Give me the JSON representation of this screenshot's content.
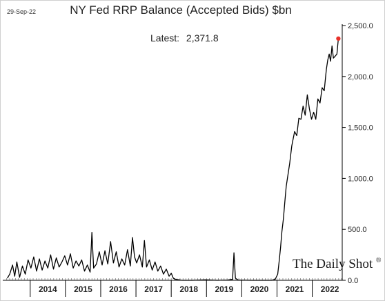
{
  "date_stamp": "29-Sep-22",
  "latest_label": "Latest:",
  "latest_value": "2,371.8",
  "watermark": "The Daily Shot",
  "watermark_mark": "®",
  "colors": {
    "line": "#000000",
    "latest_point": "#e8312a",
    "axis": "#000000",
    "text": "#222222"
  },
  "chart_data": {
    "type": "line",
    "title": "NY Fed RRP Balance (Accepted Bids) $bn",
    "xlabel": "",
    "ylabel": "",
    "y_axis_side": "right",
    "ylim": [
      0,
      2500
    ],
    "yticks": [
      0,
      500,
      1000,
      1500,
      2000,
      2500
    ],
    "ytick_labels": [
      "0.0",
      "500.0",
      "1,000.0",
      "1,500.0",
      "2,000.0",
      "2,500.0"
    ],
    "x_categories": [
      "2014",
      "2015",
      "2016",
      "2017",
      "2018",
      "2019",
      "2020",
      "2021",
      "2022"
    ],
    "xlim": [
      2013.3,
      2022.85
    ],
    "grid": false,
    "legend": "none",
    "latest": {
      "x": 2022.74,
      "y": 2371.8
    },
    "series": [
      {
        "values": [
          [
            2013.35,
            20
          ],
          [
            2013.42,
            60
          ],
          [
            2013.5,
            150
          ],
          [
            2013.56,
            40
          ],
          [
            2013.62,
            180
          ],
          [
            2013.7,
            30
          ],
          [
            2013.78,
            140
          ],
          [
            2013.86,
            60
          ],
          [
            2013.94,
            200
          ],
          [
            2014.02,
            120
          ],
          [
            2014.1,
            230
          ],
          [
            2014.18,
            90
          ],
          [
            2014.26,
            210
          ],
          [
            2014.34,
            100
          ],
          [
            2014.42,
            190
          ],
          [
            2014.5,
            120
          ],
          [
            2014.58,
            250
          ],
          [
            2014.66,
            110
          ],
          [
            2014.74,
            220
          ],
          [
            2014.82,
            130
          ],
          [
            2014.9,
            180
          ],
          [
            2014.98,
            240
          ],
          [
            2015.06,
            150
          ],
          [
            2015.14,
            260
          ],
          [
            2015.22,
            120
          ],
          [
            2015.3,
            190
          ],
          [
            2015.38,
            140
          ],
          [
            2015.46,
            200
          ],
          [
            2015.54,
            90
          ],
          [
            2015.62,
            150
          ],
          [
            2015.7,
            80
          ],
          [
            2015.75,
            470
          ],
          [
            2015.8,
            120
          ],
          [
            2015.88,
            160
          ],
          [
            2015.96,
            280
          ],
          [
            2016.04,
            150
          ],
          [
            2016.12,
            290
          ],
          [
            2016.2,
            160
          ],
          [
            2016.28,
            380
          ],
          [
            2016.36,
            170
          ],
          [
            2016.44,
            280
          ],
          [
            2016.52,
            130
          ],
          [
            2016.6,
            210
          ],
          [
            2016.68,
            150
          ],
          [
            2016.76,
            300
          ],
          [
            2016.84,
            140
          ],
          [
            2016.9,
            420
          ],
          [
            2016.96,
            230
          ],
          [
            2017.02,
            170
          ],
          [
            2017.1,
            250
          ],
          [
            2017.18,
            130
          ],
          [
            2017.24,
            390
          ],
          [
            2017.3,
            130
          ],
          [
            2017.38,
            200
          ],
          [
            2017.46,
            100
          ],
          [
            2017.54,
            180
          ],
          [
            2017.62,
            90
          ],
          [
            2017.7,
            140
          ],
          [
            2017.78,
            60
          ],
          [
            2017.86,
            110
          ],
          [
            2017.94,
            40
          ],
          [
            2018.0,
            70
          ],
          [
            2018.06,
            20
          ],
          [
            2018.12,
            10
          ],
          [
            2018.3,
            0
          ],
          [
            2018.6,
            0
          ],
          [
            2018.98,
            5
          ],
          [
            2019.3,
            0
          ],
          [
            2019.6,
            3
          ],
          [
            2019.74,
            10
          ],
          [
            2019.78,
            270
          ],
          [
            2019.82,
            20
          ],
          [
            2019.9,
            2
          ],
          [
            2020.3,
            0
          ],
          [
            2020.6,
            0
          ],
          [
            2020.85,
            0
          ],
          [
            2020.95,
            10
          ],
          [
            2021.02,
            60
          ],
          [
            2021.06,
            180
          ],
          [
            2021.1,
            320
          ],
          [
            2021.14,
            480
          ],
          [
            2021.18,
            600
          ],
          [
            2021.22,
            760
          ],
          [
            2021.26,
            920
          ],
          [
            2021.3,
            1010
          ],
          [
            2021.36,
            1150
          ],
          [
            2021.42,
            1320
          ],
          [
            2021.5,
            1460
          ],
          [
            2021.56,
            1420
          ],
          [
            2021.62,
            1590
          ],
          [
            2021.68,
            1580
          ],
          [
            2021.74,
            1710
          ],
          [
            2021.8,
            1620
          ],
          [
            2021.86,
            1820
          ],
          [
            2021.92,
            1680
          ],
          [
            2021.98,
            1580
          ],
          [
            2022.04,
            1650
          ],
          [
            2022.1,
            1580
          ],
          [
            2022.16,
            1780
          ],
          [
            2022.22,
            1740
          ],
          [
            2022.28,
            1890
          ],
          [
            2022.34,
            1860
          ],
          [
            2022.4,
            2070
          ],
          [
            2022.44,
            2160
          ],
          [
            2022.48,
            2220
          ],
          [
            2022.52,
            2150
          ],
          [
            2022.56,
            2300
          ],
          [
            2022.6,
            2180
          ],
          [
            2022.65,
            2200
          ],
          [
            2022.7,
            2220
          ],
          [
            2022.74,
            2371.8
          ]
        ]
      }
    ]
  }
}
